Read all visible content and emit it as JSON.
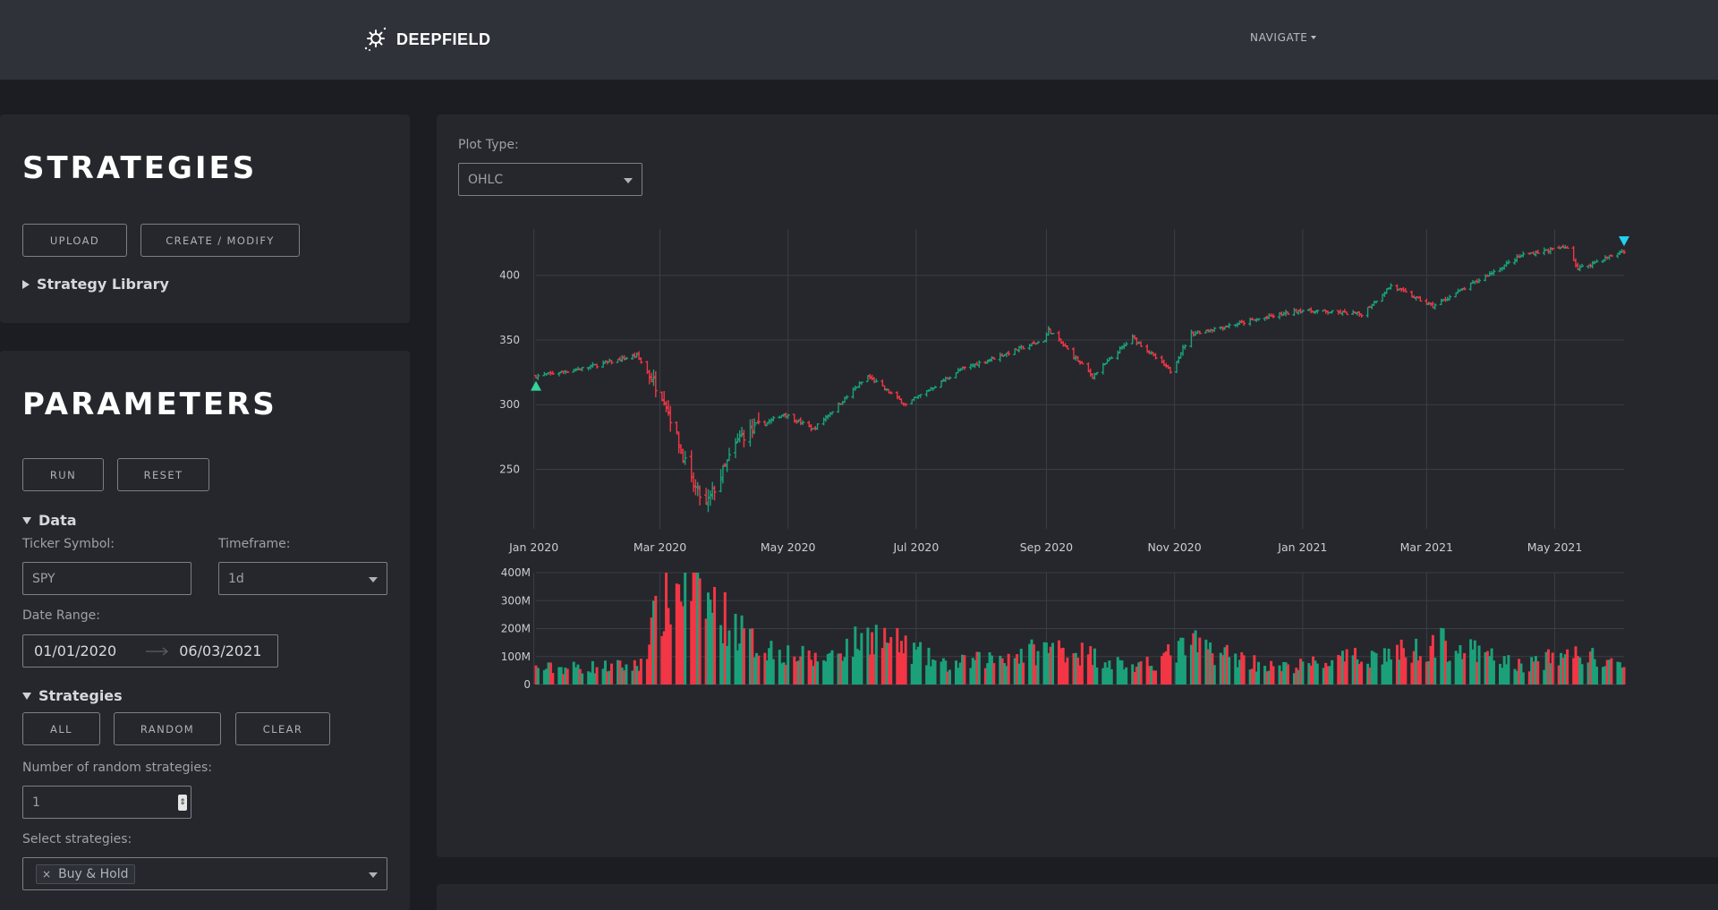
{
  "header": {
    "brand_name": "DEEPFIELD",
    "brand_icon": "gear-sparkle-icon",
    "navigate_label": "NAVIGATE"
  },
  "strategies_panel": {
    "title": "STRATEGIES",
    "upload_label": "UPLOAD",
    "create_label": "CREATE / MODIFY",
    "library_label": "Strategy Library"
  },
  "parameters_panel": {
    "title": "PARAMETERS",
    "run_label": "RUN",
    "reset_label": "RESET",
    "data_section": "Data",
    "ticker_label": "Ticker Symbol:",
    "ticker_value": "SPY",
    "timeframe_label": "Timeframe:",
    "timeframe_value": "1d",
    "date_range_label": "Date Range:",
    "date_start": "01/01/2020",
    "date_end": "06/03/2021",
    "strategies_section": "Strategies",
    "all_label": "ALL",
    "random_label": "RANDOM",
    "clear_label": "CLEAR",
    "num_random_label": "Number of random strategies:",
    "num_random_value": "1",
    "select_label": "Select strategies:",
    "selected_strategy": "Buy & Hold"
  },
  "chart_panel": {
    "plot_type_label": "Plot Type:",
    "plot_type_value": "OHLC"
  },
  "colors": {
    "up": "#1aa17a",
    "down": "#f23645",
    "buy_marker": "#34d399",
    "sell_marker": "#22d3ee"
  },
  "chart_data": {
    "type": "ohlc",
    "x_axis": {
      "range": [
        "2020-01-02",
        "2021-06-03"
      ],
      "tick_labels": [
        "Jan 2020",
        "Mar 2020",
        "May 2020",
        "Jul 2020",
        "Sep 2020",
        "Nov 2020",
        "Jan 2021",
        "Mar 2021",
        "May 2021"
      ],
      "tick_dates": [
        "2020-01-01",
        "2020-03-01",
        "2020-05-01",
        "2020-07-01",
        "2020-09-01",
        "2020-11-01",
        "2021-01-01",
        "2021-03-01",
        "2021-05-01"
      ]
    },
    "price_axis": {
      "ylim": [
        213,
        433
      ],
      "ticks": [
        250,
        300,
        350,
        400
      ],
      "grid": true
    },
    "price_anchors": [
      {
        "date": "2020-01-02",
        "close": 322
      },
      {
        "date": "2020-01-24",
        "close": 328
      },
      {
        "date": "2020-02-19",
        "close": 338
      },
      {
        "date": "2020-03-03",
        "close": 305
      },
      {
        "date": "2020-03-16",
        "close": 240
      },
      {
        "date": "2020-03-23",
        "close": 222
      },
      {
        "date": "2020-04-08",
        "close": 275
      },
      {
        "date": "2020-04-29",
        "close": 293
      },
      {
        "date": "2020-05-13",
        "close": 281
      },
      {
        "date": "2020-06-08",
        "close": 322
      },
      {
        "date": "2020-06-26",
        "close": 300
      },
      {
        "date": "2020-07-22",
        "close": 327
      },
      {
        "date": "2020-08-31",
        "close": 350
      },
      {
        "date": "2020-09-02",
        "close": 358
      },
      {
        "date": "2020-09-23",
        "close": 322
      },
      {
        "date": "2020-10-12",
        "close": 352
      },
      {
        "date": "2020-10-30",
        "close": 326
      },
      {
        "date": "2020-11-09",
        "close": 355
      },
      {
        "date": "2020-12-31",
        "close": 373
      },
      {
        "date": "2021-01-29",
        "close": 370
      },
      {
        "date": "2021-02-12",
        "close": 392
      },
      {
        "date": "2021-03-04",
        "close": 376
      },
      {
        "date": "2021-04-16",
        "close": 416
      },
      {
        "date": "2021-05-07",
        "close": 422
      },
      {
        "date": "2021-05-12",
        "close": 405
      },
      {
        "date": "2021-06-03",
        "close": 419
      }
    ],
    "volume_axis": {
      "ylim": [
        0,
        400000000
      ],
      "ticks": [
        0,
        100000000,
        200000000,
        300000000,
        400000000
      ],
      "tick_labels": [
        "0",
        "100M",
        "200M",
        "300M",
        "400M"
      ]
    },
    "volume_anchors": [
      {
        "date": "2020-01-02",
        "volume": 60000000
      },
      {
        "date": "2020-02-20",
        "volume": 70000000
      },
      {
        "date": "2020-02-28",
        "volume": 250000000
      },
      {
        "date": "2020-03-12",
        "volume": 380000000
      },
      {
        "date": "2020-03-20",
        "volume": 340000000
      },
      {
        "date": "2020-04-15",
        "volume": 150000000
      },
      {
        "date": "2020-05-15",
        "volume": 90000000
      },
      {
        "date": "2020-06-11",
        "volume": 190000000
      },
      {
        "date": "2020-07-15",
        "volume": 70000000
      },
      {
        "date": "2020-09-08",
        "volume": 140000000
      },
      {
        "date": "2020-10-15",
        "volume": 60000000
      },
      {
        "date": "2020-11-09",
        "volume": 150000000
      },
      {
        "date": "2020-12-20",
        "volume": 60000000
      },
      {
        "date": "2021-02-25",
        "volume": 130000000
      },
      {
        "date": "2021-03-05",
        "volume": 160000000
      },
      {
        "date": "2021-04-15",
        "volume": 70000000
      },
      {
        "date": "2021-05-12",
        "volume": 120000000
      },
      {
        "date": "2021-06-03",
        "volume": 55000000
      }
    ],
    "markers": [
      {
        "type": "buy",
        "date": "2020-01-02",
        "price": 315
      },
      {
        "type": "sell",
        "date": "2021-06-03",
        "price": 426
      }
    ]
  }
}
